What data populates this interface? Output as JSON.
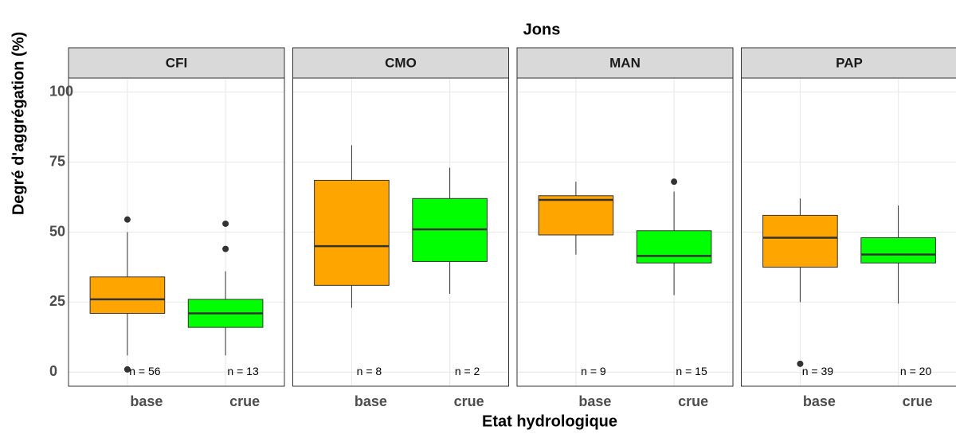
{
  "chart_data": {
    "type": "boxplot",
    "title": "Jons",
    "x_label": "Etat hydrologique",
    "y_label": "Degré d'aggrégation (%)",
    "categories": [
      "base",
      "crue"
    ],
    "colors": [
      "#FFA500",
      "#00FF00"
    ],
    "ylim": [
      -5,
      105
    ],
    "yticks": [
      0,
      25,
      50,
      75,
      100
    ],
    "grid": true,
    "facets": [
      {
        "name": "CFI",
        "boxes": [
          {
            "min": 6,
            "q1": 21,
            "median": 26,
            "q3": 34,
            "max": 50,
            "outliers": [
              54.5,
              1
            ],
            "n_label": "n = 56"
          },
          {
            "min": 6,
            "q1": 16,
            "median": 21,
            "q3": 26,
            "max": 36,
            "outliers": [
              53,
              44
            ],
            "n_label": "n = 13"
          }
        ]
      },
      {
        "name": "CMO",
        "boxes": [
          {
            "min": 23,
            "q1": 31,
            "median": 45,
            "q3": 68.5,
            "max": 81,
            "outliers": [],
            "n_label": "n = 8"
          },
          {
            "min": 28,
            "q1": 39.5,
            "median": 51,
            "q3": 62,
            "max": 73,
            "outliers": [],
            "n_label": "n = 2"
          }
        ]
      },
      {
        "name": "MAN",
        "boxes": [
          {
            "min": 42,
            "q1": 49,
            "median": 61.5,
            "q3": 63,
            "max": 68,
            "outliers": [],
            "n_label": "n = 9"
          },
          {
            "min": 27.5,
            "q1": 39,
            "median": 41.5,
            "q3": 50.5,
            "max": 64.5,
            "outliers": [
              68
            ],
            "n_label": "n = 15"
          }
        ]
      },
      {
        "name": "PAP",
        "boxes": [
          {
            "min": 25,
            "q1": 37.5,
            "median": 48,
            "q3": 56,
            "max": 62,
            "outliers": [
              3
            ],
            "n_label": "n = 39"
          },
          {
            "min": 24.5,
            "q1": 39,
            "median": 42,
            "q3": 48,
            "max": 59.5,
            "outliers": [],
            "n_label": "n = 20"
          }
        ]
      }
    ]
  }
}
